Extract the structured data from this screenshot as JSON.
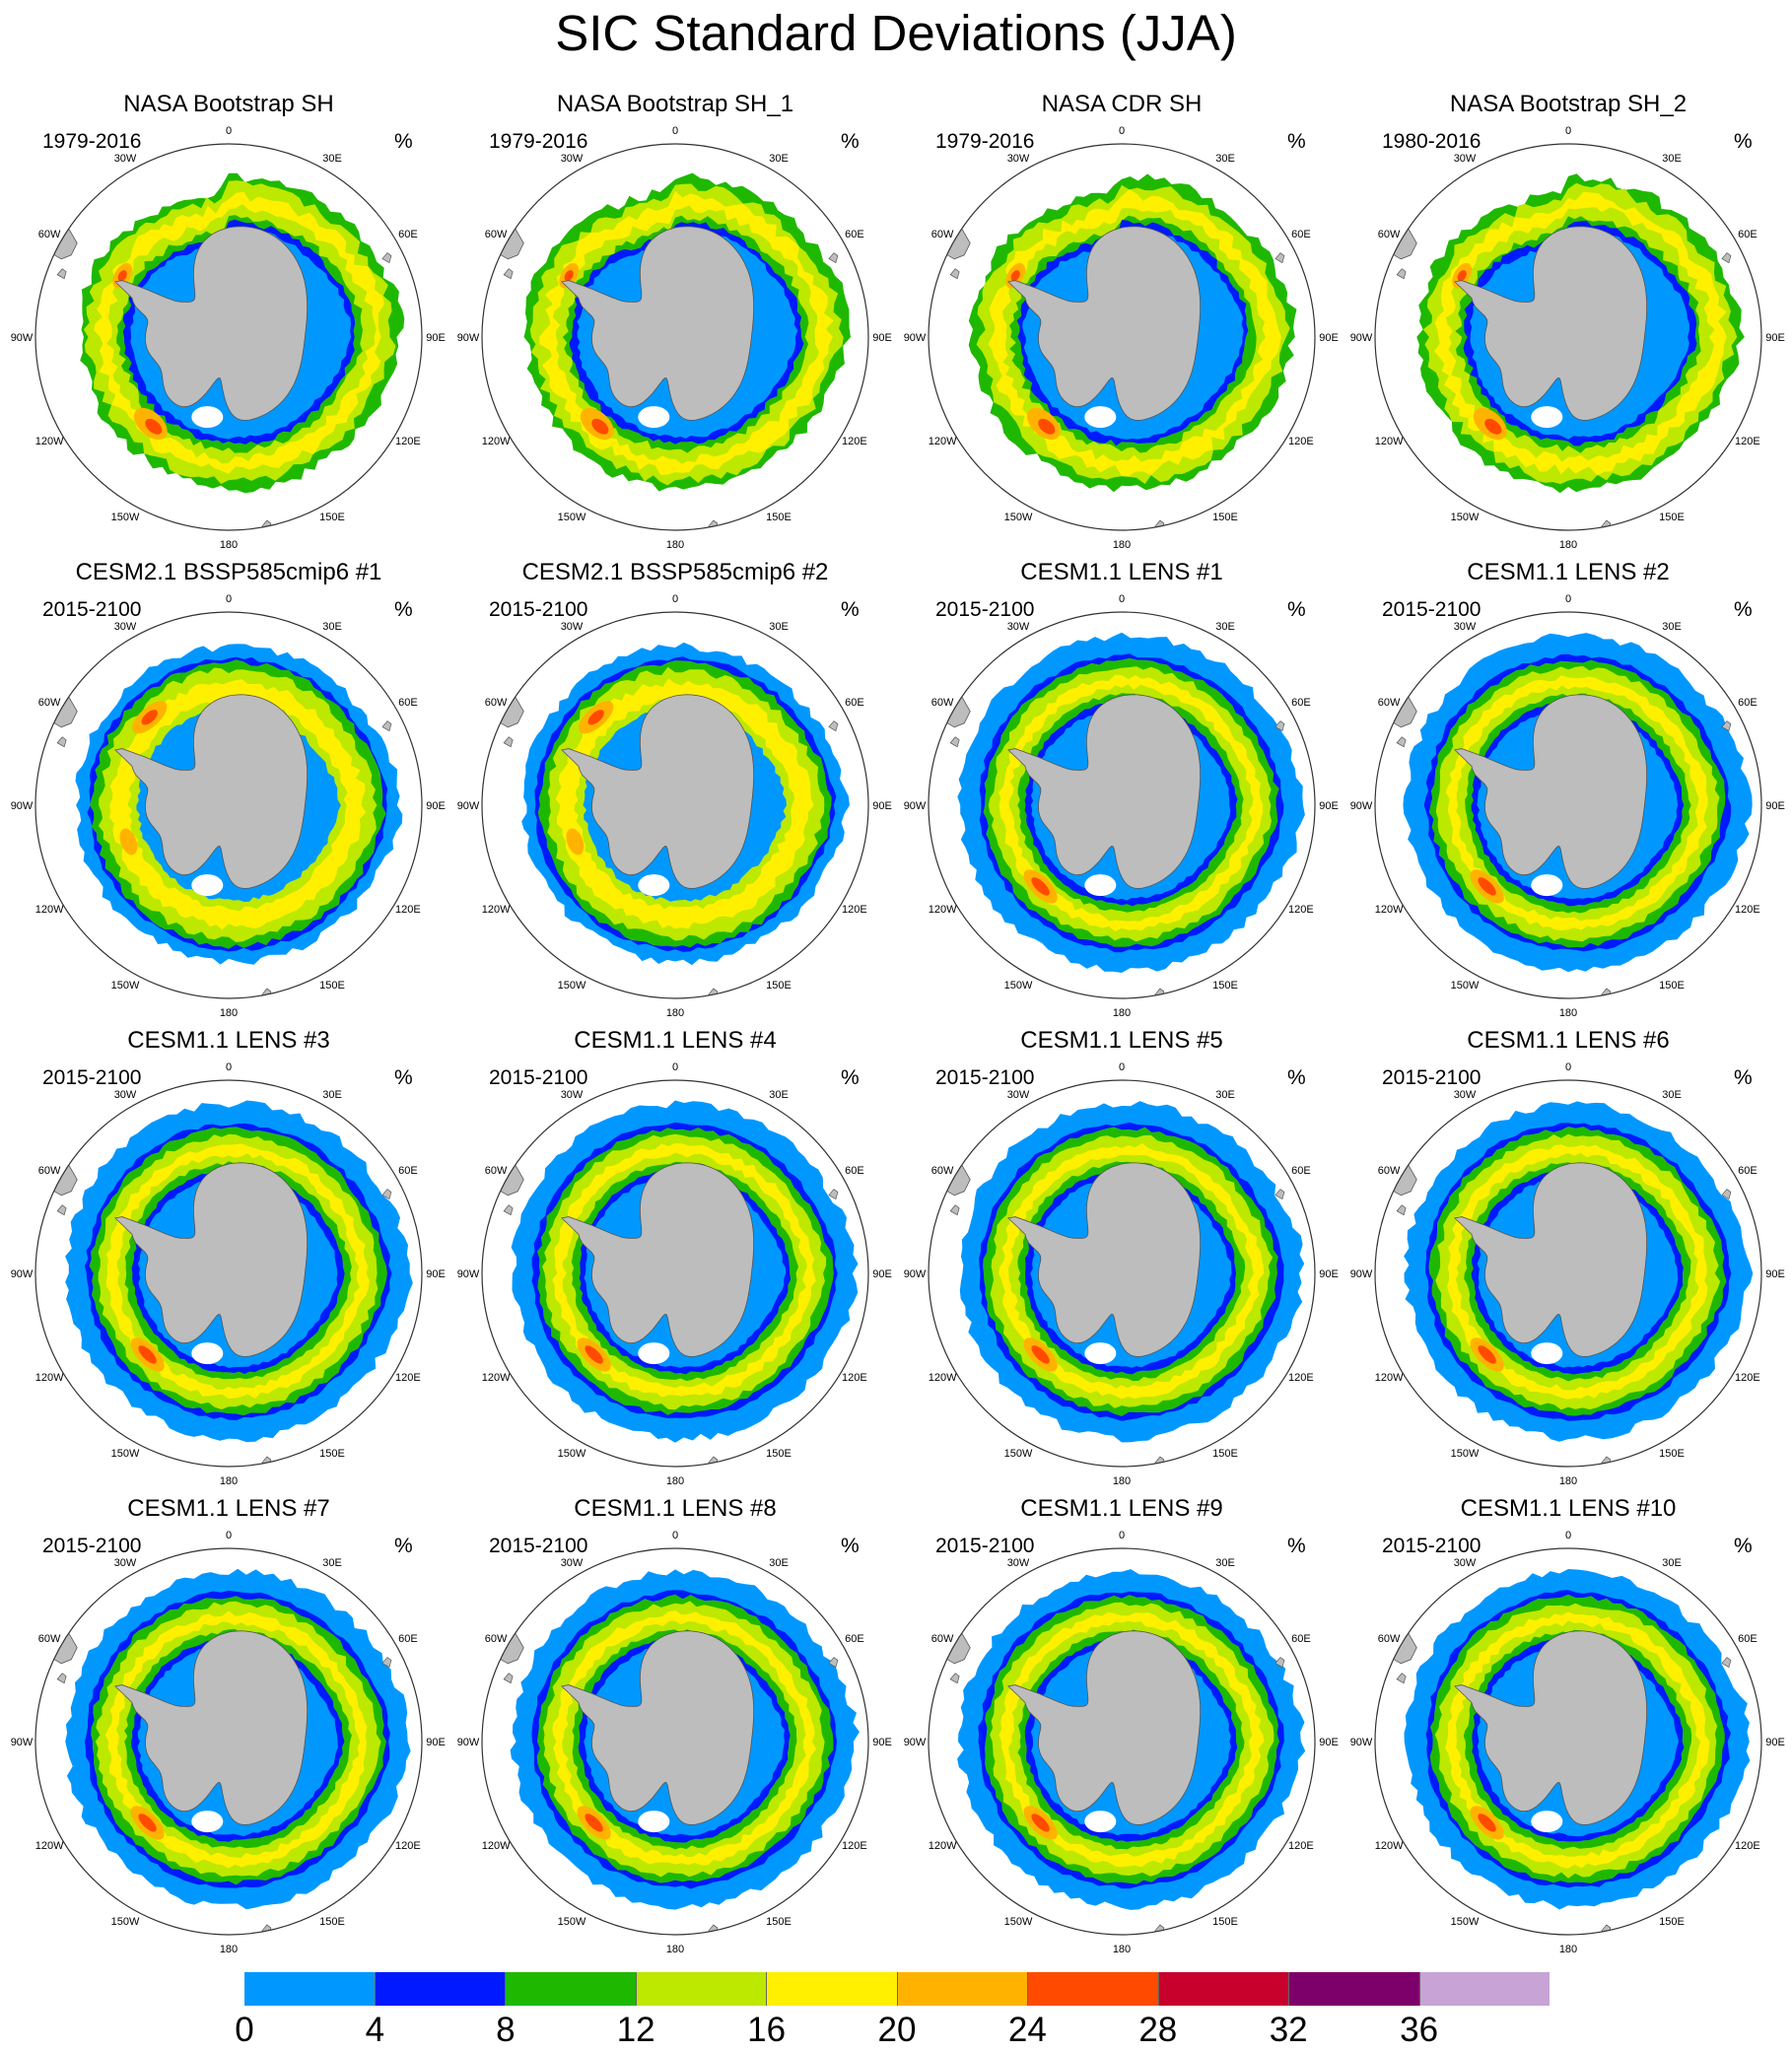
{
  "figure": {
    "title": "SIC Standard Deviations (JJA)",
    "unit_symbol": "%",
    "longitude_labels": [
      "0",
      "30E",
      "60E",
      "90E",
      "120E",
      "150E",
      "180",
      "150W",
      "120W",
      "90W",
      "60W",
      "30W"
    ],
    "panels": [
      {
        "title": "NASA Bootstrap SH",
        "period": "1979-2016",
        "style": "obs"
      },
      {
        "title": "NASA Bootstrap SH_1",
        "period": "1979-2016",
        "style": "obs"
      },
      {
        "title": "NASA CDR SH",
        "period": "1979-2016",
        "style": "obs"
      },
      {
        "title": "NASA Bootstrap SH_2",
        "period": "1980-2016",
        "style": "obs"
      },
      {
        "title": "CESM2.1 BSSP585cmip6 #1",
        "period": "2015-2100",
        "style": "cesm2"
      },
      {
        "title": "CESM2.1 BSSP585cmip6 #2",
        "period": "2015-2100",
        "style": "cesm2"
      },
      {
        "title": "CESM1.1 LENS #1",
        "period": "2015-2100",
        "style": "lens"
      },
      {
        "title": "CESM1.1 LENS #2",
        "period": "2015-2100",
        "style": "lens"
      },
      {
        "title": "CESM1.1 LENS #3",
        "period": "2015-2100",
        "style": "lens"
      },
      {
        "title": "CESM1.1 LENS #4",
        "period": "2015-2100",
        "style": "lens"
      },
      {
        "title": "CESM1.1 LENS #5",
        "period": "2015-2100",
        "style": "lens"
      },
      {
        "title": "CESM1.1 LENS #6",
        "period": "2015-2100",
        "style": "lens"
      },
      {
        "title": "CESM1.1 LENS #7",
        "period": "2015-2100",
        "style": "lens"
      },
      {
        "title": "CESM1.1 LENS #8",
        "period": "2015-2100",
        "style": "lens"
      },
      {
        "title": "CESM1.1 LENS #9",
        "period": "2015-2100",
        "style": "lens"
      },
      {
        "title": "CESM1.1 LENS #10",
        "period": "2015-2100",
        "style": "lens"
      }
    ],
    "colorbar": {
      "labels": [
        "0",
        "4",
        "8",
        "12",
        "16",
        "20",
        "24",
        "28",
        "32",
        "36"
      ],
      "colors": [
        "#0098ff",
        "#0019ff",
        "#1fb800",
        "#bde800",
        "#fff000",
        "#ffb300",
        "#ff4a00",
        "#c8002c",
        "#7d006a",
        "#c8a3d6"
      ]
    },
    "land_color": "#bdbdbd"
  }
}
